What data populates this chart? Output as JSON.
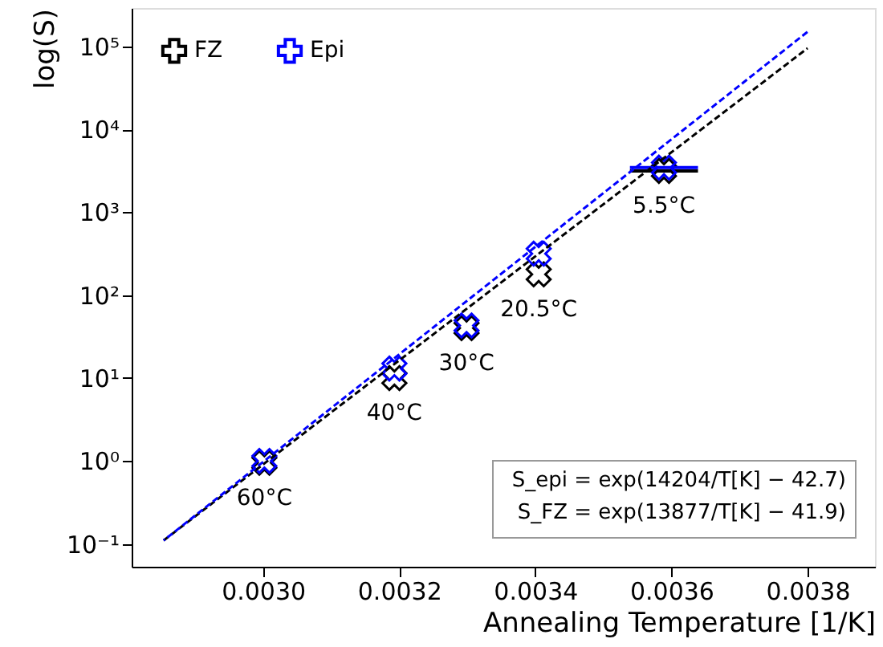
{
  "chart_data": {
    "type": "scatter",
    "xlabel": "Annealing Temperature [1/K]",
    "ylabel": "log(S)",
    "xlim": [
      0.002807,
      0.003899
    ],
    "ylim": [
      0.053,
      290000
    ],
    "log": "y",
    "xticks": [
      {
        "value": 0.003,
        "label": "0.0030"
      },
      {
        "value": 0.0032,
        "label": "0.0032"
      },
      {
        "value": 0.0034,
        "label": "0.0034"
      },
      {
        "value": 0.0036,
        "label": "0.0036"
      },
      {
        "value": 0.0038,
        "label": "0.0038"
      }
    ],
    "yticks": [
      {
        "value": 0.1,
        "label": "10⁻¹"
      },
      {
        "value": 1,
        "label": "10⁰"
      },
      {
        "value": 10,
        "label": "10¹"
      },
      {
        "value": 100,
        "label": "10²"
      },
      {
        "value": 1000,
        "label": "10³"
      },
      {
        "value": 10000,
        "label": "10⁴"
      },
      {
        "value": 100000,
        "label": "10⁵"
      }
    ],
    "grid": false,
    "legend": "top left",
    "marker": "cross",
    "series": [
      {
        "name": "FZ",
        "color": "#000000",
        "x": [
          0.003002,
          0.003193,
          0.003299,
          0.003405,
          0.003589
        ],
        "values": [
          0.95,
          10,
          40,
          178,
          3150
        ],
        "xerrors": [
          null,
          null,
          null,
          null,
          5e-05
        ]
      },
      {
        "name": "Epi",
        "color": "#0000ff",
        "x": [
          0.003002,
          0.003193,
          0.003299,
          0.003405,
          0.003589
        ],
        "values": [
          1.0,
          13,
          43,
          316,
          3450
        ],
        "xerrors": [
          null,
          null,
          null,
          null,
          5e-05
        ]
      },
      {
        "type": "line",
        "color": "#000000",
        "line_style": "dashed",
        "marker": "none",
        "x": [
          0.002854,
          0.0038
        ],
        "values": [
          0.11,
          95000
        ]
      },
      {
        "type": "line",
        "color": "#0000ff",
        "line_style": "dashed",
        "marker": "none",
        "x": [
          0.002854,
          0.0038
        ],
        "values": [
          0.11,
          150000
        ]
      }
    ],
    "annotations": [
      {
        "text": "60°C",
        "x": 0.003002,
        "y": 0.95
      },
      {
        "text": "40°C",
        "x": 0.003193,
        "y": 10
      },
      {
        "text": "30°C",
        "x": 0.003299,
        "y": 40
      },
      {
        "text": "20.5°C",
        "x": 0.003405,
        "y": 178
      },
      {
        "text": "5.5°C",
        "x": 0.003589,
        "y": 3150
      },
      "S_epi = exp(14204/T[K] − 42.7)",
      "S_FZ = exp(13877/T[K] − 41.9)"
    ]
  }
}
